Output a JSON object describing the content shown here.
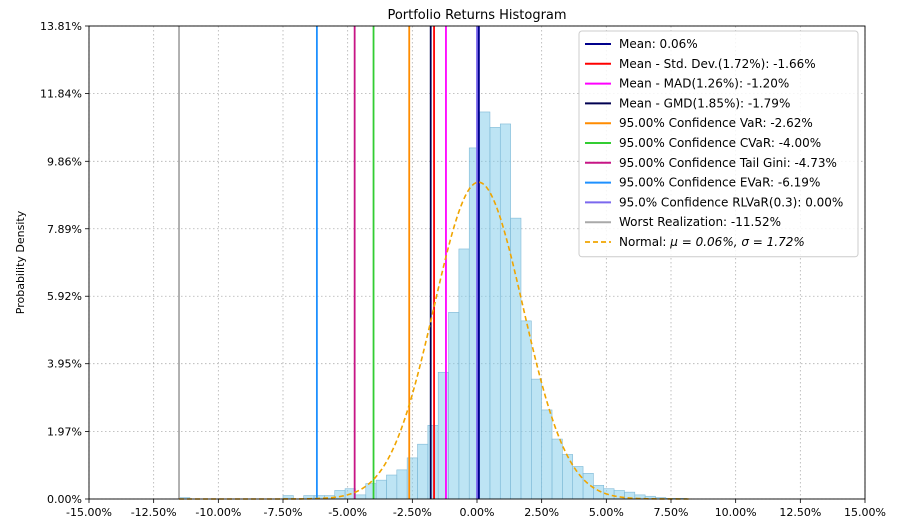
{
  "chart_data": {
    "type": "histogram",
    "title": "Portfolio Returns Histogram",
    "xlabel": "",
    "ylabel": "Probability Density",
    "xlim": [
      -15,
      15
    ],
    "ylim": [
      0,
      13.81
    ],
    "x_ticks": [
      -15,
      -12.5,
      -10,
      -7.5,
      -5,
      -2.5,
      0,
      2.5,
      5,
      7.5,
      10,
      12.5,
      15
    ],
    "x_tick_labels": [
      "-15.00%",
      "-12.50%",
      "-10.00%",
      "-7.50%",
      "-5.00%",
      "-2.50%",
      "0.00%",
      "2.50%",
      "5.00%",
      "7.50%",
      "10.00%",
      "12.50%",
      "15.00%"
    ],
    "y_ticks": [
      0,
      1.97,
      3.95,
      5.92,
      7.89,
      9.86,
      11.84,
      13.81
    ],
    "y_tick_labels": [
      "0.00%",
      "1.97%",
      "3.95%",
      "5.92%",
      "7.89%",
      "9.86%",
      "11.84%",
      "13.81%"
    ],
    "grid": true,
    "legend_position": "top-right",
    "histogram": {
      "color": "#87ceeb",
      "edge_color": "#7fb9d6",
      "bin_edges": [
        -11.52,
        -11.1,
        -10.7,
        -10.3,
        -9.9,
        -9.5,
        -9.1,
        -8.7,
        -8.3,
        -7.9,
        -7.5,
        -7.1,
        -6.7,
        -6.3,
        -5.9,
        -5.5,
        -5.1,
        -4.7,
        -4.3,
        -3.9,
        -3.5,
        -3.1,
        -2.7,
        -2.3,
        -1.9,
        -1.5,
        -1.1,
        -0.7,
        -0.3,
        0.1,
        0.5,
        0.9,
        1.3,
        1.7,
        2.1,
        2.5,
        2.9,
        3.3,
        3.7,
        4.1,
        4.5,
        4.9,
        5.3,
        5.7,
        6.1,
        6.5,
        6.9,
        7.3,
        7.7,
        8.1
      ],
      "densities": [
        0.04,
        0,
        0,
        0,
        0,
        0,
        0,
        0,
        0,
        0,
        0.1,
        0,
        0.1,
        0.1,
        0.1,
        0.25,
        0.3,
        0.12,
        0.45,
        0.55,
        0.7,
        0.85,
        1.2,
        1.6,
        2.15,
        3.7,
        5.45,
        7.3,
        10.25,
        11.3,
        10.85,
        10.95,
        8.2,
        5.2,
        3.5,
        2.6,
        1.75,
        1.3,
        0.95,
        0.75,
        0.4,
        0.3,
        0.25,
        0.2,
        0.12,
        0.08,
        0.04,
        0.02,
        0.02
      ]
    },
    "vertical_lines": [
      {
        "label": "Mean: 0.06%",
        "x": 0.06,
        "color": "#00008b",
        "width": 2.5
      },
      {
        "label": "Mean - Std. Dev.(1.72%): -1.66%",
        "x": -1.66,
        "color": "#ff0000",
        "width": 1.8
      },
      {
        "label": "Mean - MAD(1.26%): -1.20%",
        "x": -1.2,
        "color": "#ff00ff",
        "width": 1.8
      },
      {
        "label": "Mean - GMD(1.85%): -1.79%",
        "x": -1.79,
        "color": "#000050",
        "width": 1.8
      },
      {
        "label": "95.00% Confidence VaR: -2.62%",
        "x": -2.62,
        "color": "#ff8c00",
        "width": 1.8
      },
      {
        "label": "95.00% Confidence CVaR: -4.00%",
        "x": -4.0,
        "color": "#32cd32",
        "width": 1.8
      },
      {
        "label": "95.00% Confidence Tail Gini: -4.73%",
        "x": -4.73,
        "color": "#c71585",
        "width": 1.8
      },
      {
        "label": "95.00% Confidence EVaR: -6.19%",
        "x": -6.19,
        "color": "#1e90ff",
        "width": 1.8
      },
      {
        "label": "95.0% Confidence RLVaR(0.3): 0.00%",
        "x": 0.0,
        "color": "#7b68ee",
        "width": 1.8
      },
      {
        "label": "Worst Realization: -11.52%",
        "x": -11.52,
        "color": "#a9a9a9",
        "width": 1.8
      }
    ],
    "normal_curve": {
      "label_prefix": "Normal: ",
      "label_math": "μ = 0.06%, σ = 1.72%",
      "mu": 0.06,
      "sigma": 1.72,
      "peak_density": 9.25,
      "x_start": -11.52,
      "x_end": 8.3,
      "color": "#f0a500",
      "dash": "5,3"
    }
  }
}
